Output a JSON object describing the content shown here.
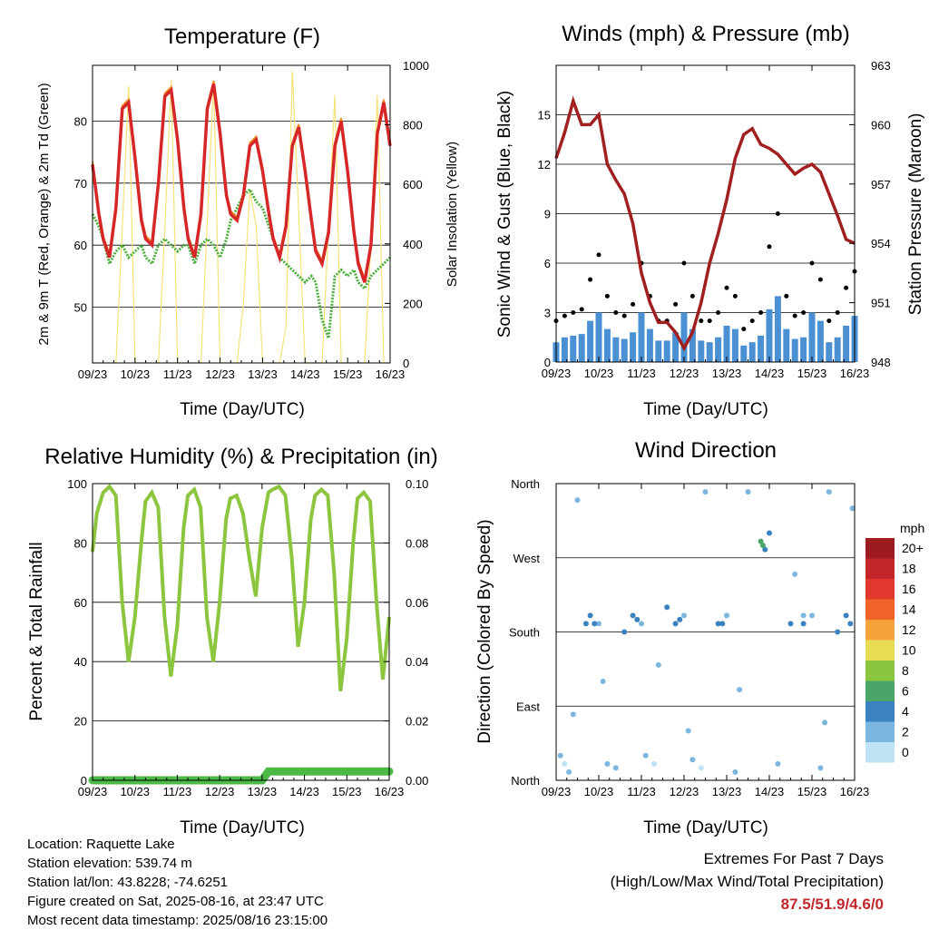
{
  "station": {
    "location": "Location: Raquette Lake",
    "elevation": "Station elevation: 539.74 m",
    "latlon": "Station lat/lon: 43.8228; -74.6251",
    "created": "Figure created on Sat, 2025-08-16, at 23:47 UTC",
    "latest": "Most recent data timestamp: 2025/08/16 23:15:00"
  },
  "extremes": {
    "line1": "Extremes For Past 7 Days",
    "line2": "(High/Low/Max Wind/Total Precipitation)",
    "values": "87.5/51.9/4.6/0"
  },
  "colors": {
    "temp_2m": "#d62728",
    "temp_9m": "#f28c28",
    "dewpoint": "#4cae3c",
    "solar": "#f5e27a",
    "gust": "#000000",
    "wind": "#4a90d2",
    "pressure": "#a01f1f",
    "rh": "#8cc63f",
    "precip": "#4cb846"
  },
  "chart_data": [
    {
      "type": "line",
      "id": "temperature",
      "title": "Temperature (F)",
      "xlabel": "Time (Day/UTC)",
      "ylabel": "2m & 9m T (Red, Orange) & 2m Td (Green)",
      "y2label": "Solar Insolation (Yellow)",
      "xticks": [
        "09/23",
        "10/23",
        "11/23",
        "12/23",
        "13/23",
        "14/23",
        "15/23",
        "16/23"
      ],
      "ylim": [
        41,
        89
      ],
      "yticks": [
        50,
        60,
        70,
        80
      ],
      "y2lim": [
        0,
        1000
      ],
      "y2ticks": [
        0,
        200,
        400,
        600,
        800,
        1000
      ],
      "x": [
        0,
        0.15,
        0.25,
        0.4,
        0.55,
        0.7,
        0.85,
        1,
        1.15,
        1.25,
        1.4,
        1.55,
        1.7,
        1.85,
        2,
        2.15,
        2.25,
        2.4,
        2.55,
        2.7,
        2.85,
        3,
        3.15,
        3.25,
        3.4,
        3.55,
        3.7,
        3.85,
        4,
        4.15,
        4.25,
        4.4,
        4.55,
        4.7,
        4.85,
        5,
        5.15,
        5.25,
        5.4,
        5.55,
        5.7,
        5.85,
        6,
        6.15,
        6.25,
        6.4,
        6.55,
        6.7,
        6.85,
        7
      ],
      "series": [
        {
          "name": "2m T",
          "values": [
            73,
            65,
            61,
            58,
            66,
            82,
            83,
            74,
            64,
            61,
            60,
            70,
            84,
            85,
            77,
            66,
            61,
            58,
            65,
            82,
            86,
            78,
            68,
            65,
            64,
            68,
            76,
            77,
            72,
            65,
            61,
            58,
            63,
            76,
            79,
            72,
            64,
            59,
            57,
            62,
            76,
            80,
            72,
            62,
            57,
            54,
            60,
            78,
            83,
            76
          ]
        },
        {
          "name": "Td",
          "values": [
            65,
            63,
            61,
            57,
            59,
            60,
            58,
            59,
            60,
            58,
            57,
            60,
            61,
            60,
            59,
            60,
            60,
            57,
            60,
            61,
            60,
            58,
            61,
            64,
            66,
            68,
            69,
            67,
            66,
            63,
            61,
            58,
            57,
            56,
            55,
            54,
            55,
            54,
            48,
            45,
            55,
            56,
            55,
            56,
            54,
            53,
            55,
            56,
            57,
            58
          ]
        },
        {
          "name": "Solar",
          "values": [
            0,
            0,
            0,
            0,
            0,
            450,
            930,
            0,
            0,
            0,
            0,
            0,
            450,
            950,
            0,
            0,
            0,
            0,
            0,
            480,
            950,
            0,
            0,
            0,
            0,
            200,
            580,
            460,
            0,
            0,
            0,
            0,
            120,
            980,
            500,
            0,
            0,
            0,
            0,
            450,
            900,
            0,
            0,
            0,
            0,
            0,
            400,
            900,
            0,
            0
          ]
        }
      ]
    },
    {
      "type": "line",
      "id": "winds",
      "title": "Winds (mph) & Pressure (mb)",
      "xlabel": "Time (Day/UTC)",
      "ylabel": "Sonic Wind & Gust (Blue, Black)",
      "y2label": "Station Pressure (Maroon)",
      "xticks": [
        "09/23",
        "10/23",
        "11/23",
        "12/23",
        "13/23",
        "14/23",
        "15/23",
        "16/23"
      ],
      "ylim": [
        0,
        18
      ],
      "yticks": [
        0,
        3,
        6,
        9,
        12,
        15
      ],
      "y2lim": [
        948,
        963
      ],
      "y2ticks": [
        948,
        951,
        954,
        957,
        960,
        963
      ],
      "x": [
        0,
        0.2,
        0.4,
        0.6,
        0.8,
        1,
        1.2,
        1.4,
        1.6,
        1.8,
        2,
        2.2,
        2.4,
        2.6,
        2.8,
        3,
        3.2,
        3.4,
        3.6,
        3.8,
        4,
        4.2,
        4.4,
        4.6,
        4.8,
        5,
        5.2,
        5.4,
        5.6,
        5.8,
        6,
        6.2,
        6.4,
        6.6,
        6.8,
        7
      ],
      "series": [
        {
          "name": "Gust",
          "values": [
            2.5,
            2.8,
            3,
            3.2,
            5,
            6.5,
            4,
            3,
            2.8,
            3.5,
            6,
            4,
            2.5,
            2.5,
            3.5,
            6,
            4,
            2.5,
            2.5,
            3,
            4.5,
            4,
            2,
            2.5,
            3,
            7,
            9,
            4,
            2.8,
            3,
            6,
            5,
            2.5,
            3,
            4.5,
            5.5
          ]
        },
        {
          "name": "Wind",
          "values": [
            1.2,
            1.5,
            1.6,
            1.7,
            2.5,
            3,
            2,
            1.5,
            1.4,
            1.8,
            3,
            2,
            1.3,
            1.3,
            1.8,
            3,
            2,
            1.3,
            1.2,
            1.5,
            2.2,
            2,
            1,
            1.2,
            1.6,
            3.2,
            4,
            2,
            1.4,
            1.5,
            3,
            2.5,
            1.2,
            1.5,
            2.2,
            2.8
          ]
        },
        {
          "name": "Pressure",
          "values": [
            958.3,
            959.6,
            961.2,
            960,
            960,
            960.5,
            958,
            957.2,
            956.5,
            955,
            952.5,
            951,
            950,
            950,
            949.5,
            948.7,
            949.5,
            951,
            953,
            954.5,
            956.2,
            958.3,
            959.5,
            959.8,
            959,
            958.8,
            958.5,
            958,
            957.5,
            957.8,
            958,
            957.6,
            956.5,
            955.4,
            954.2,
            954
          ]
        }
      ]
    },
    {
      "type": "line",
      "id": "humidity",
      "title": "Relative Humidity (%) & Precipitation (in)",
      "xlabel": "Time (Day/UTC)",
      "ylabel": "Percent & Total Rainfall",
      "xticks": [
        "09/23",
        "10/23",
        "11/23",
        "12/23",
        "13/23",
        "14/23",
        "15/23",
        "16/23"
      ],
      "ylim": [
        0,
        100
      ],
      "yticks": [
        0,
        20,
        40,
        60,
        80,
        100
      ],
      "y2lim": [
        0,
        0.1
      ],
      "y2ticks": [
        "0.00",
        "0.02",
        "0.04",
        "0.06",
        "0.08",
        "0.10"
      ],
      "x": [
        0,
        0.1,
        0.25,
        0.4,
        0.55,
        0.7,
        0.85,
        1,
        1.15,
        1.25,
        1.4,
        1.55,
        1.7,
        1.85,
        2,
        2.15,
        2.25,
        2.4,
        2.55,
        2.7,
        2.85,
        3,
        3.15,
        3.25,
        3.4,
        3.55,
        3.7,
        3.85,
        4,
        4.15,
        4.25,
        4.4,
        4.55,
        4.7,
        4.85,
        5,
        5.15,
        5.25,
        5.4,
        5.55,
        5.7,
        5.85,
        6,
        6.15,
        6.25,
        6.4,
        6.55,
        6.7,
        6.85,
        7
      ],
      "series": [
        {
          "name": "RH",
          "values": [
            77,
            90,
            97,
            99,
            96,
            60,
            40,
            55,
            80,
            94,
            97,
            92,
            55,
            35,
            52,
            85,
            96,
            98,
            92,
            55,
            40,
            60,
            88,
            95,
            96,
            90,
            75,
            62,
            85,
            97,
            98,
            99,
            96,
            75,
            45,
            60,
            88,
            96,
            98,
            96,
            70,
            30,
            48,
            80,
            95,
            97,
            94,
            60,
            34,
            55
          ]
        },
        {
          "name": "Precip",
          "values": [
            0,
            0,
            0,
            0,
            0,
            0,
            0,
            0,
            0,
            0,
            0,
            0,
            0,
            0,
            0,
            0,
            0,
            0,
            0,
            0,
            0,
            0,
            0,
            0,
            0,
            0,
            0,
            0,
            0,
            0.003,
            0.003,
            0.003,
            0.003,
            0.003,
            0.003,
            0.003,
            0.003,
            0.003,
            0.003,
            0.003,
            0.003,
            0.003,
            0.003,
            0.003,
            0.003,
            0.003,
            0.003,
            0.003,
            0.003,
            0.003
          ]
        }
      ]
    },
    {
      "type": "scatter",
      "id": "direction",
      "title": "Wind Direction",
      "xlabel": "Time (Day/UTC)",
      "ylabel": "Direction (Colored By Speed)",
      "xticks": [
        "09/23",
        "10/23",
        "11/23",
        "12/23",
        "13/23",
        "14/23",
        "15/23",
        "16/23"
      ],
      "yticks": [
        "North",
        "East",
        "South",
        "West",
        "North"
      ],
      "legend_title": "mph",
      "legend_labels": [
        "20+",
        "18",
        "16",
        "14",
        "12",
        "10",
        "8",
        "6",
        "4",
        "2",
        "0"
      ],
      "legend_colors": [
        "#9b1b1e",
        "#c4252a",
        "#e0382c",
        "#f0642a",
        "#f5a33b",
        "#e8dc55",
        "#8cc63f",
        "#4aa668",
        "#3a83c0",
        "#7ab6e0",
        "#bde3f5"
      ],
      "x": [
        0.1,
        0.2,
        0.3,
        0.5,
        0.7,
        0.8,
        1.0,
        1.2,
        1.4,
        1.6,
        1.8,
        2.0,
        2.1,
        2.3,
        2.6,
        2.8,
        3.0,
        3.2,
        3.4,
        3.5,
        3.8,
        4.0,
        4.2,
        4.5,
        4.8,
        4.9,
        5.0,
        5.2,
        5.5,
        5.8,
        6.0,
        6.2,
        6.4,
        6.6,
        6.8,
        6.95,
        0.9,
        1.9,
        2.9,
        3.9,
        4.85,
        5.8,
        6.9,
        0.4,
        1.1,
        2.4,
        3.1,
        4.3,
        5.6,
        6.3
      ],
      "y_deg": [
        30,
        20,
        10,
        340,
        190,
        200,
        190,
        20,
        15,
        180,
        200,
        190,
        30,
        20,
        210,
        190,
        200,
        25,
        15,
        350,
        190,
        200,
        10,
        350,
        290,
        280,
        300,
        20,
        190,
        200,
        200,
        15,
        350,
        180,
        200,
        330,
        190,
        195,
        195,
        190,
        285,
        190,
        190,
        80,
        120,
        140,
        60,
        110,
        250,
        70
      ],
      "speed": [
        1,
        0.5,
        1,
        1,
        3,
        3,
        2,
        1,
        1,
        3,
        3,
        2,
        1,
        0.5,
        3,
        3,
        2,
        1,
        0.5,
        1,
        3,
        2,
        1,
        1,
        5,
        4,
        4,
        1,
        3,
        2,
        2,
        1,
        1,
        3,
        3,
        2,
        4,
        4,
        4,
        3,
        5,
        3,
        3,
        1,
        1,
        1,
        1,
        1,
        2,
        1
      ]
    }
  ]
}
